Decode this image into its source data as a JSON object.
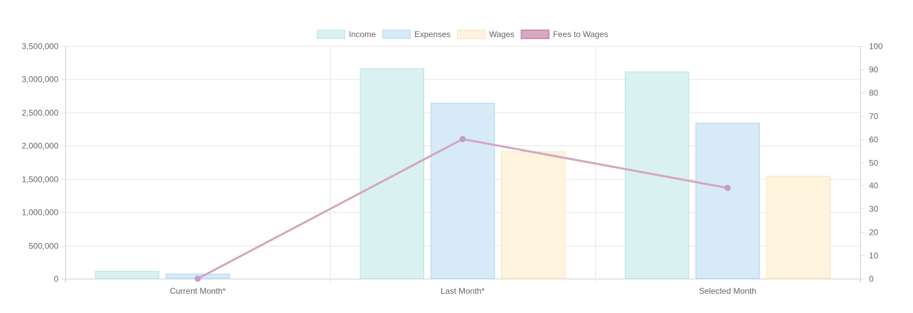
{
  "chart_data": {
    "type": "bar",
    "title": "",
    "categories": [
      "Current Month*",
      "Last Month*",
      "Selected Month"
    ],
    "y_left": {
      "min": 0,
      "max": 3500000,
      "step": 500000,
      "tick_labels": [
        "0",
        "500,000",
        "1,000,000",
        "1,500,000",
        "2,000,000",
        "2,500,000",
        "3,000,000",
        "3,500,000"
      ]
    },
    "y_right": {
      "min": 0,
      "max": 100,
      "step": 10,
      "tick_labels": [
        "0",
        "10",
        "20",
        "30",
        "40",
        "50",
        "60",
        "70",
        "80",
        "90",
        "100"
      ]
    },
    "grid": true,
    "legend_position": "top-center",
    "series": [
      {
        "name": "Income",
        "kind": "bar",
        "axis": "left",
        "values": [
          110000,
          3160000,
          3110000
        ],
        "fill": "#d9f1f1",
        "stroke": "#b5e3e3"
      },
      {
        "name": "Expenses",
        "kind": "bar",
        "axis": "left",
        "values": [
          70000,
          2640000,
          2340000
        ],
        "fill": "#d6eaf8",
        "stroke": "#b1d6f0"
      },
      {
        "name": "Wages",
        "kind": "bar",
        "axis": "left",
        "values": [
          0,
          1910000,
          1540000
        ],
        "fill": "#fff4de",
        "stroke": "#f5e3b5"
      },
      {
        "name": "Fees to Wages",
        "kind": "line",
        "axis": "right",
        "values": [
          0,
          60,
          39
        ],
        "color": "#d4a5bf",
        "point_color": "#c89ac8"
      }
    ]
  }
}
